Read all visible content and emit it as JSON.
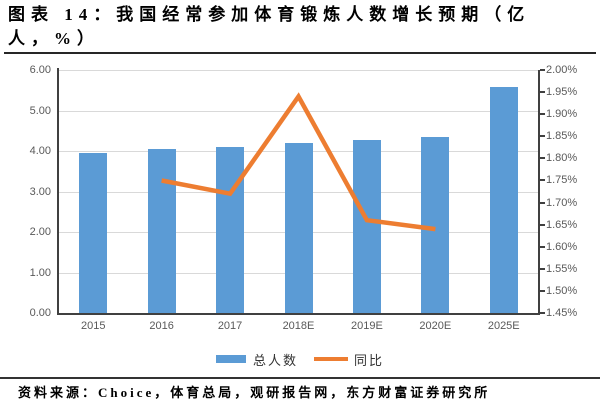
{
  "header": {
    "title": "图表 14：我国经常参加体育锻炼人数增长预期（亿人，%）",
    "title_lines": [
      "图表 14：我国经常参加体育锻炼人数增长预期（亿",
      "人，%）"
    ]
  },
  "footer": {
    "source": "资料来源：Choice，体育总局，观研报告网，东方财富证券研究所"
  },
  "chart_data": {
    "type": "bar",
    "subtype": "combo-bar-line-dual-axis",
    "title": "我国经常参加体育锻炼人数增长预期（亿人，%）",
    "categories": [
      "2015",
      "2016",
      "2017",
      "2018E",
      "2019E",
      "2020E",
      "2025E"
    ],
    "series": [
      {
        "name": "总人数",
        "type": "bar",
        "axis": "left",
        "unit": "亿人",
        "color": "#5B9BD5",
        "values": [
          3.95,
          4.04,
          4.1,
          4.2,
          4.28,
          4.35,
          5.58
        ]
      },
      {
        "name": "同比",
        "type": "line",
        "axis": "right",
        "unit": "%",
        "color": "#ED7D31",
        "values": [
          null,
          1.75,
          1.72,
          1.94,
          1.66,
          1.64,
          null
        ]
      }
    ],
    "left_axis": {
      "min": 0,
      "max": 6,
      "step": 1,
      "ticks": [
        "6.00",
        "5.00",
        "4.00",
        "3.00",
        "2.00",
        "1.00",
        "0.00"
      ]
    },
    "right_axis": {
      "min": 1.45,
      "max": 2.0,
      "step": 0.05,
      "ticks": [
        "2.00%",
        "1.95%",
        "1.90%",
        "1.85%",
        "1.80%",
        "1.75%",
        "1.70%",
        "1.65%",
        "1.60%",
        "1.55%",
        "1.50%",
        "1.45%"
      ]
    },
    "legend": {
      "position": "bottom",
      "entries": [
        "总人数",
        "同比"
      ]
    },
    "grid": "horizontal",
    "colors": {
      "bar": "#5B9BD5",
      "line": "#ED7D31",
      "gridline": "#D9D9D9",
      "axis": "#404040",
      "tick_label": "#595959"
    }
  }
}
